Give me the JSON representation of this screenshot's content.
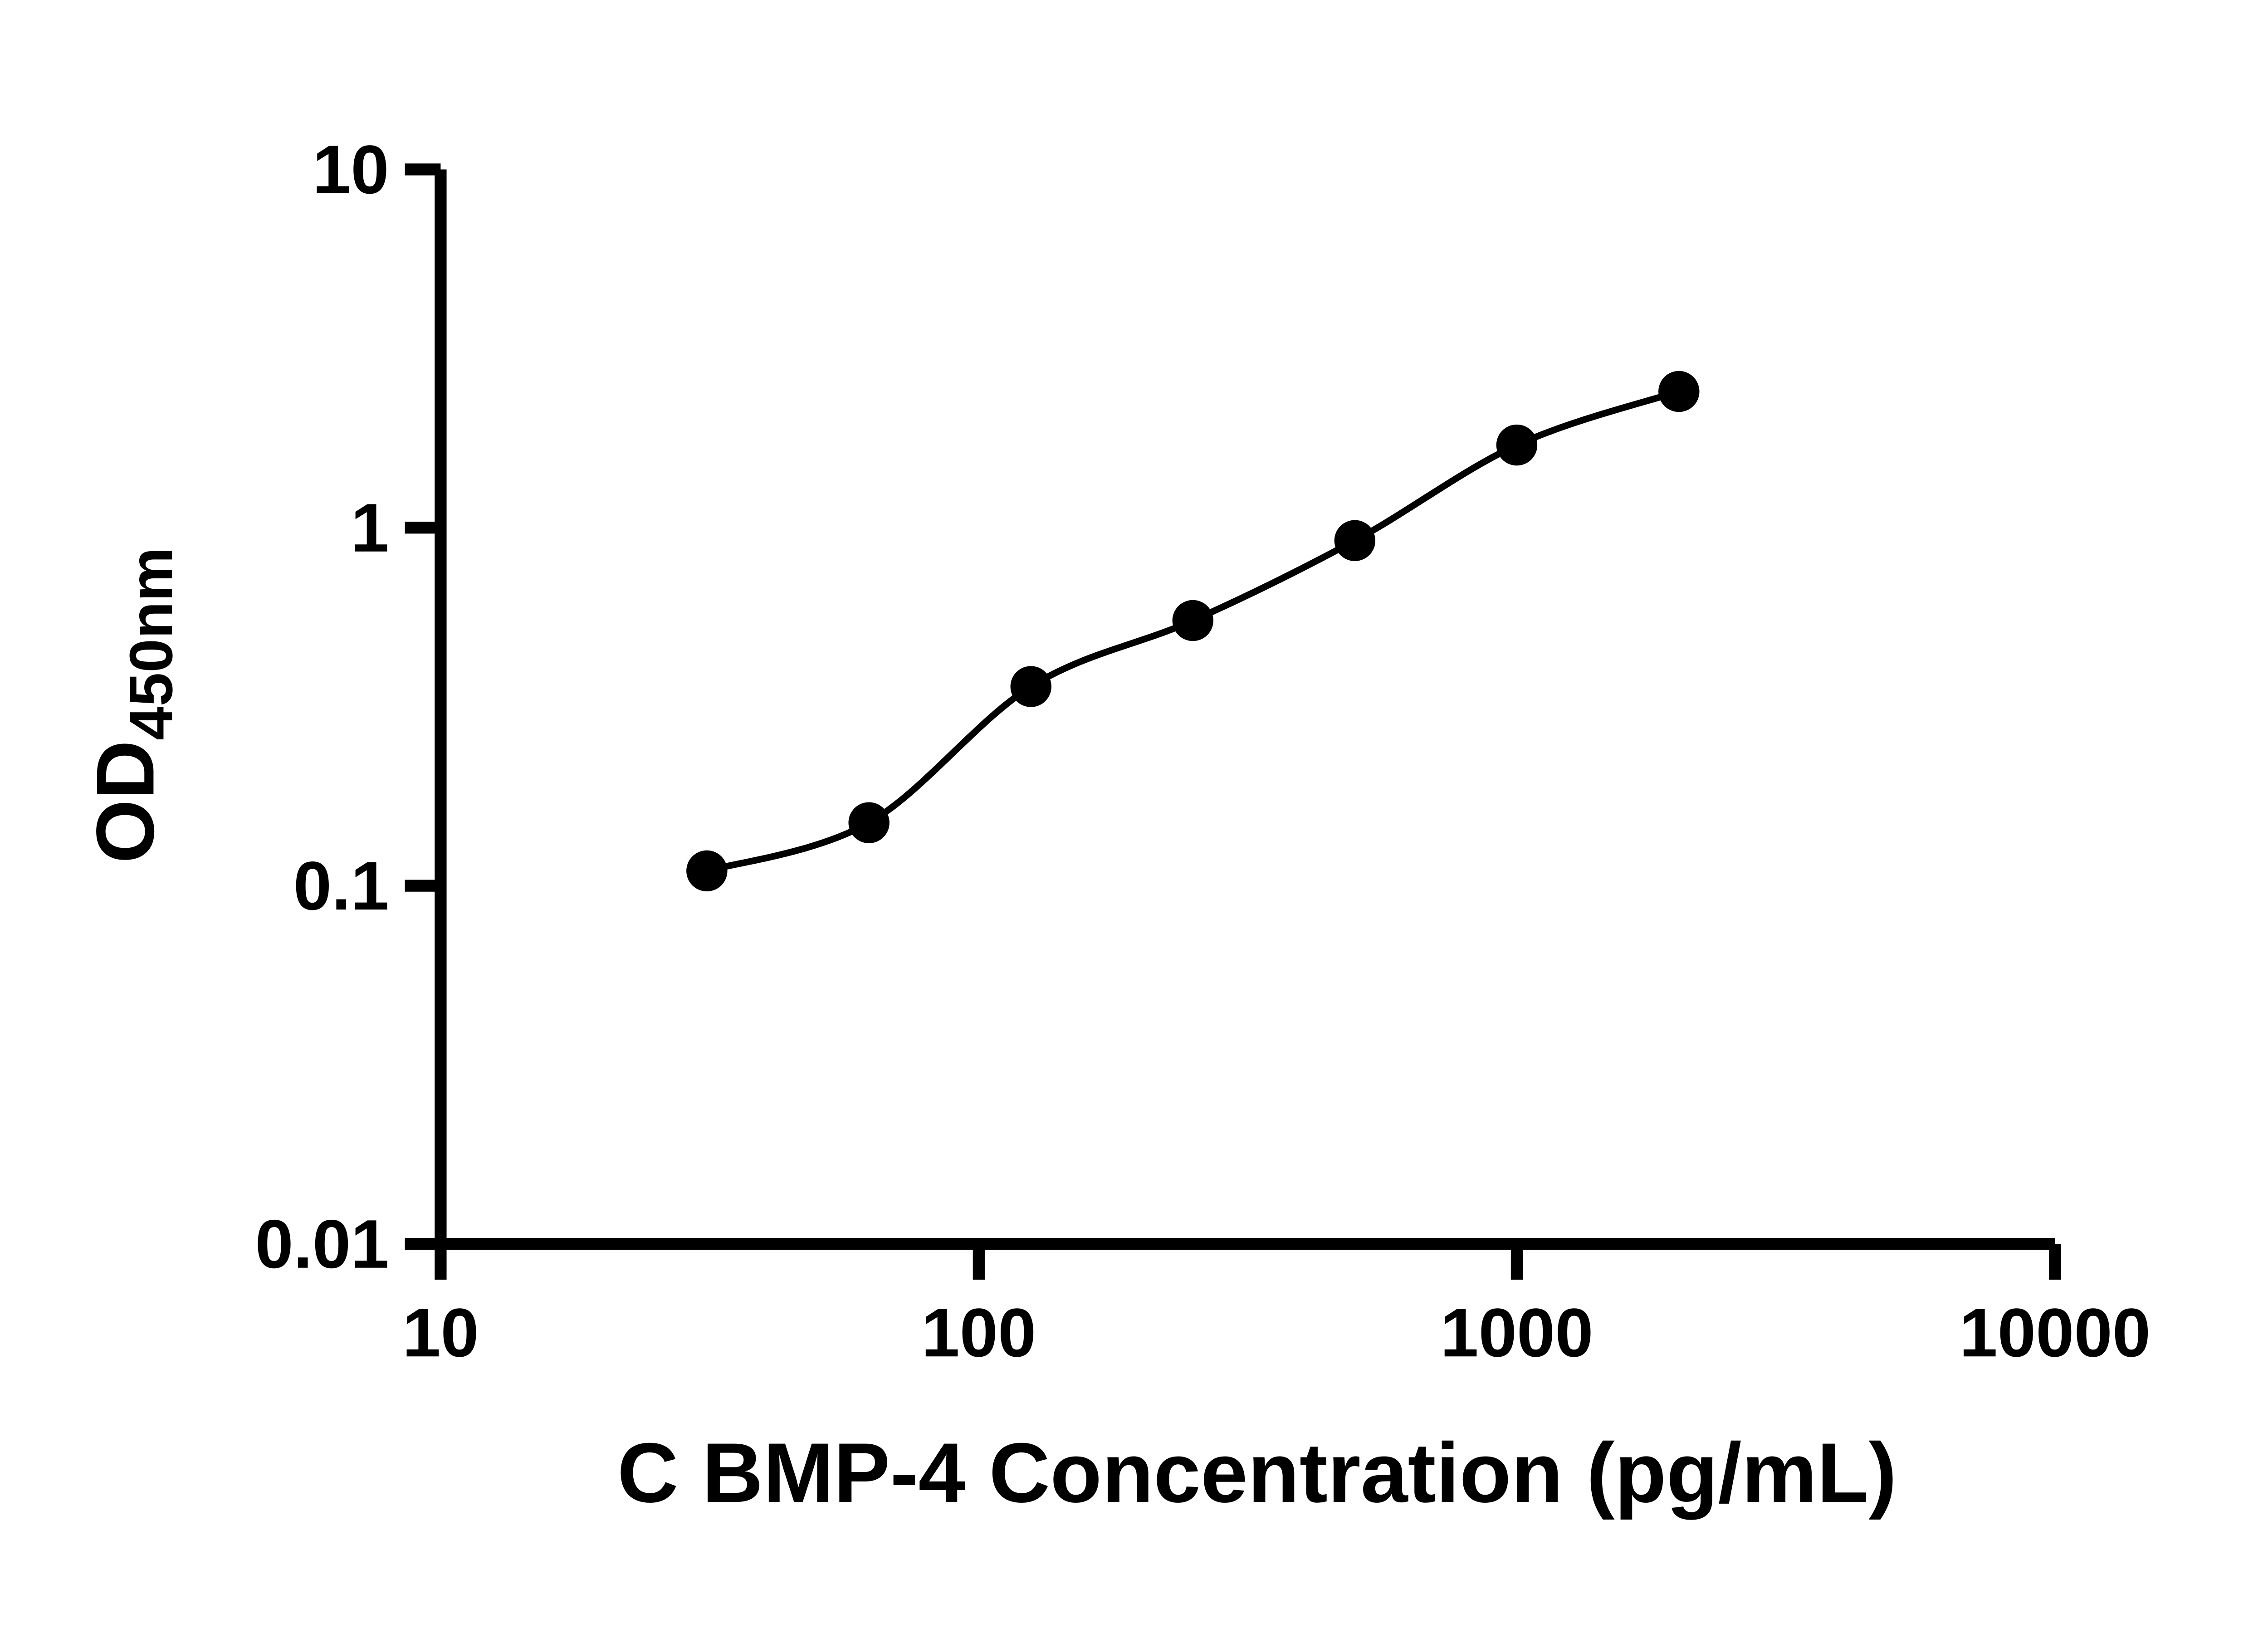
{
  "chart_data": {
    "type": "scatter",
    "title": "",
    "xlabel": "C BMP-4 Concentration (pg/mL)",
    "ylabel": "OD",
    "ylabel_subscript": "450nm",
    "x_scale": "log",
    "y_scale": "log",
    "xlim": [
      10,
      10000
    ],
    "ylim": [
      0.01,
      10
    ],
    "x_ticks": [
      10,
      100,
      1000,
      10000
    ],
    "x_tick_labels": [
      "10",
      "100",
      "1000",
      "10000"
    ],
    "y_ticks": [
      0.01,
      0.1,
      1,
      10
    ],
    "y_tick_labels": [
      "0.01",
      "0.1",
      "1",
      "10"
    ],
    "points": [
      {
        "x": 31.25,
        "y": 0.11
      },
      {
        "x": 62.5,
        "y": 0.15
      },
      {
        "x": 125,
        "y": 0.36
      },
      {
        "x": 250,
        "y": 0.55
      },
      {
        "x": 500,
        "y": 0.92
      },
      {
        "x": 1000,
        "y": 1.7
      },
      {
        "x": 2000,
        "y": 2.4
      }
    ],
    "curve_style": "smooth-fit-through-points",
    "marker": "filled-circle",
    "marker_color": "#000000",
    "line_color": "#000000",
    "axis_color": "#000000",
    "background": "#ffffff",
    "legend": "none",
    "grid": "off"
  }
}
